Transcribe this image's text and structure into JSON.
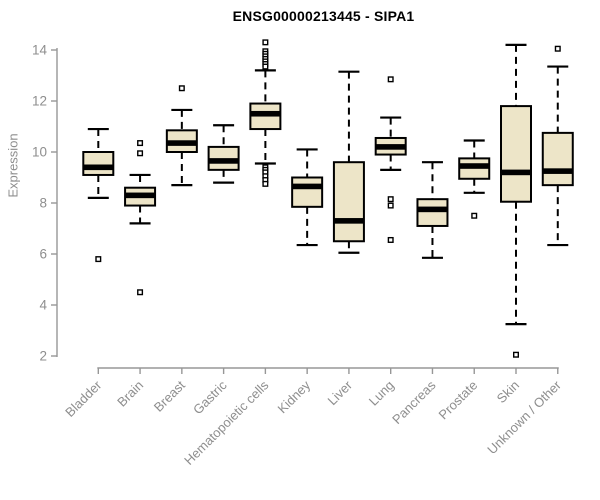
{
  "header": {
    "title": "ENSG00000213445 - SIPA1"
  },
  "chart_data": {
    "type": "boxplot",
    "title": "ENSG00000213445 - SIPA1",
    "xlabel": "",
    "ylabel": "Expression",
    "ylim": [
      2,
      14
    ],
    "yticks": [
      2,
      4,
      6,
      8,
      10,
      12,
      14
    ],
    "grid": false,
    "legend": "none",
    "colors": {
      "box_fill": "#ede5c8",
      "box_stroke": "#000000",
      "median": "#000000",
      "whisker": "#000000",
      "axis": "#979797",
      "tick_label": "#8e8e8e",
      "title": "#000000",
      "background": "#ffffff"
    },
    "categories": [
      "Bladder",
      "Brain",
      "Breast",
      "Gastric",
      "Hematopoietic cells",
      "Kidney",
      "Liver",
      "Lung",
      "Pancreas",
      "Prostate",
      "Skin",
      "Unknown / Other"
    ],
    "boxes": [
      {
        "label": "Bladder",
        "whisker_low": 8.2,
        "q1": 9.1,
        "median": 9.4,
        "q3": 10.0,
        "whisker_high": 10.9,
        "outliers": [
          5.8
        ]
      },
      {
        "label": "Brain",
        "whisker_low": 7.2,
        "q1": 7.9,
        "median": 8.3,
        "q3": 8.6,
        "whisker_high": 9.1,
        "outliers": [
          10.35,
          9.95,
          4.5
        ]
      },
      {
        "label": "Breast",
        "whisker_low": 8.7,
        "q1": 10.0,
        "median": 10.35,
        "q3": 10.85,
        "whisker_high": 11.65,
        "outliers": [
          12.5
        ]
      },
      {
        "label": "Gastric",
        "whisker_low": 8.8,
        "q1": 9.3,
        "median": 9.65,
        "q3": 10.2,
        "whisker_high": 11.05,
        "outliers": []
      },
      {
        "label": "Hematopoietic cells",
        "whisker_low": 9.55,
        "q1": 10.9,
        "median": 11.5,
        "q3": 11.9,
        "whisker_high": 13.2,
        "outliers": [
          14.3,
          13.95,
          13.85,
          13.75,
          13.65,
          13.55,
          13.45,
          13.35,
          9.4,
          9.3,
          9.2,
          9.05,
          8.9,
          8.75
        ]
      },
      {
        "label": "Kidney",
        "whisker_low": 6.35,
        "q1": 7.85,
        "median": 8.65,
        "q3": 9.0,
        "whisker_high": 10.1,
        "outliers": []
      },
      {
        "label": "Liver",
        "whisker_low": 6.05,
        "q1": 6.5,
        "median": 7.3,
        "q3": 9.6,
        "whisker_high": 13.15,
        "outliers": []
      },
      {
        "label": "Lung",
        "whisker_low": 9.3,
        "q1": 9.9,
        "median": 10.2,
        "q3": 10.55,
        "whisker_high": 11.35,
        "outliers": [
          12.85,
          8.15,
          7.9,
          6.55
        ]
      },
      {
        "label": "Pancreas",
        "whisker_low": 5.85,
        "q1": 7.1,
        "median": 7.75,
        "q3": 8.15,
        "whisker_high": 9.6,
        "outliers": []
      },
      {
        "label": "Prostate",
        "whisker_low": 8.4,
        "q1": 8.95,
        "median": 9.45,
        "q3": 9.75,
        "whisker_high": 10.45,
        "outliers": [
          7.5
        ]
      },
      {
        "label": "Skin",
        "whisker_low": 3.25,
        "q1": 8.05,
        "median": 9.2,
        "q3": 11.8,
        "whisker_high": 14.2,
        "outliers": [
          2.05
        ]
      },
      {
        "label": "Unknown / Other",
        "whisker_low": 6.35,
        "q1": 8.7,
        "median": 9.25,
        "q3": 10.75,
        "whisker_high": 13.35,
        "outliers": [
          14.05
        ]
      }
    ]
  }
}
